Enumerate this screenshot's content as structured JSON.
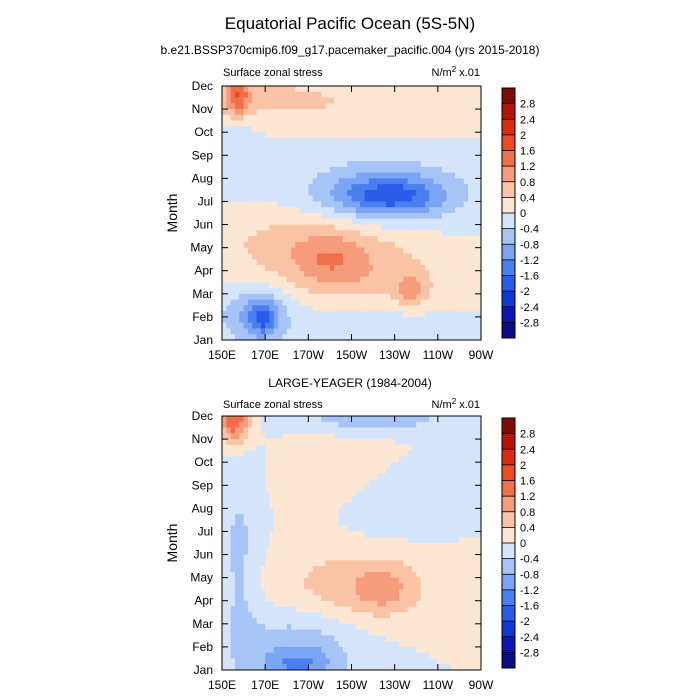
{
  "figure": {
    "title": "Equatorial Pacific Ocean (5S-5N)"
  },
  "chart_data": [
    {
      "type": "heatmap",
      "title": "b.e21.BSSP370cmip6.f09_g17.pacemaker_pacific.004 (yrs 2015-2018)",
      "left_label": "Surface zonal stress",
      "right_label_base": "N/m",
      "right_label_sup": "2",
      "right_label_tail": " x.01",
      "ylabel": "Month",
      "xlabel": "",
      "x_ticks": [
        "150E",
        "170E",
        "170W",
        "150W",
        "130W",
        "110W",
        "90W"
      ],
      "y_ticks": [
        "Jan",
        "Feb",
        "Mar",
        "Apr",
        "May",
        "Jun",
        "Jul",
        "Aug",
        "Sep",
        "Oct",
        "Nov",
        "Dec"
      ],
      "x_range": [
        "150E",
        "90W"
      ],
      "y_range": [
        "Jan",
        "Dec"
      ],
      "colorbar_labels": [
        "2.8",
        "2.4",
        "2",
        "1.6",
        "1.2",
        "0.8",
        "0.4",
        "0",
        "-0.4",
        "-0.8",
        "-1.2",
        "-1.6",
        "-2",
        "-2.4",
        "-2.8"
      ],
      "features": [
        {
          "cx": 157,
          "cy": 10.6,
          "rx": 6,
          "ry": 0.9,
          "v": 1.3
        },
        {
          "cx": 175,
          "cy": 10.4,
          "rx": 35,
          "ry": 0.9,
          "v": 0.55
        },
        {
          "cx": 235,
          "cy": 10.0,
          "rx": 30,
          "ry": 1.1,
          "v": 0.35
        },
        {
          "cx": 156,
          "cy": 8.4,
          "rx": 10,
          "ry": 2.0,
          "v": -0.2
        },
        {
          "cx": 225,
          "cy": 6.4,
          "rx": 38,
          "ry": 1.5,
          "v": -0.9
        },
        {
          "cx": 228,
          "cy": 6.2,
          "rx": 24,
          "ry": 0.8,
          "v": -1.1
        },
        {
          "cx": 195,
          "cy": 4.2,
          "rx": 45,
          "ry": 1.5,
          "v": 0.7
        },
        {
          "cx": 200,
          "cy": 3.5,
          "rx": 15,
          "ry": 1.0,
          "v": 0.5
        },
        {
          "cx": 215,
          "cy": 2.6,
          "rx": 40,
          "ry": 1.2,
          "v": 0.5
        },
        {
          "cx": 238,
          "cy": 2.1,
          "rx": 7,
          "ry": 0.7,
          "v": 0.7
        },
        {
          "cx": 165,
          "cy": 1.1,
          "rx": 16,
          "ry": 1.2,
          "v": -0.9
        },
        {
          "cx": 169,
          "cy": 1.0,
          "rx": 6,
          "ry": 0.8,
          "v": -1.0
        },
        {
          "cx": 215,
          "cy": 0.5,
          "rx": 45,
          "ry": 0.9,
          "v": -0.3
        }
      ]
    },
    {
      "type": "heatmap",
      "title": "LARGE-YEAGER (1984-2004)",
      "left_label": "Surface zonal stress",
      "right_label_base": "N/m",
      "right_label_sup": "2",
      "right_label_tail": " x.01",
      "ylabel": "Month",
      "xlabel": "",
      "x_ticks": [
        "150E",
        "170E",
        "170W",
        "150W",
        "130W",
        "110W",
        "90W"
      ],
      "y_ticks": [
        "Jan",
        "Feb",
        "Mar",
        "Apr",
        "May",
        "Jun",
        "Jul",
        "Aug",
        "Sep",
        "Oct",
        "Nov",
        "Dec"
      ],
      "x_range": [
        "150E",
        "90W"
      ],
      "y_range": [
        "Jan",
        "Dec"
      ],
      "colorbar_labels": [
        "2.8",
        "2.4",
        "2",
        "1.6",
        "1.2",
        "0.8",
        "0.4",
        "0",
        "-0.4",
        "-0.8",
        "-1.2",
        "-1.6",
        "-2",
        "-2.4",
        "-2.8"
      ],
      "features": [
        {
          "cx": 156,
          "cy": 10.8,
          "rx": 7,
          "ry": 1.0,
          "v": 1.6
        },
        {
          "cx": 220,
          "cy": 10.9,
          "rx": 35,
          "ry": 0.6,
          "v": -0.7
        },
        {
          "cx": 205,
          "cy": 8.5,
          "rx": 25,
          "ry": 1.6,
          "v": 0.3
        },
        {
          "cx": 230,
          "cy": 7.3,
          "rx": 25,
          "ry": 1.5,
          "v": -0.35
        },
        {
          "cx": 212,
          "cy": 3.6,
          "rx": 36,
          "ry": 1.6,
          "v": 0.7
        },
        {
          "cx": 225,
          "cy": 3.5,
          "rx": 12,
          "ry": 1.0,
          "v": 0.5
        },
        {
          "cx": 158,
          "cy": 4.8,
          "rx": 9,
          "ry": 4.5,
          "v": -0.5
        },
        {
          "cx": 185,
          "cy": 1.2,
          "rx": 30,
          "ry": 1.6,
          "v": -0.6
        },
        {
          "cx": 185,
          "cy": 0.2,
          "rx": 18,
          "ry": 0.8,
          "v": -0.9
        }
      ]
    }
  ]
}
